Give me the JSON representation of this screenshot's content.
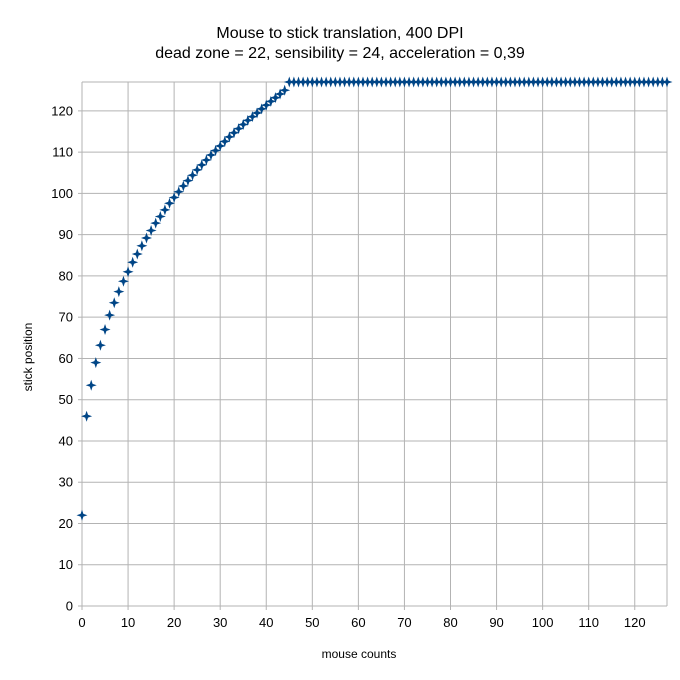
{
  "chart_data": {
    "type": "scatter",
    "title": "Mouse to stick translation, 400 DPI",
    "subtitle": "dead zone = 22, sensibility = 24, acceleration = 0,39",
    "xlabel": "mouse counts",
    "ylabel": "stick position",
    "xlim": [
      0,
      127
    ],
    "ylim": [
      0,
      127
    ],
    "x_ticks": [
      0,
      10,
      20,
      30,
      40,
      50,
      60,
      70,
      80,
      90,
      100,
      110,
      120
    ],
    "y_ticks": [
      0,
      10,
      20,
      30,
      40,
      50,
      60,
      70,
      80,
      90,
      100,
      110,
      120
    ],
    "grid": true,
    "legend": "none",
    "marker": "four-pointed-star",
    "marker_color": "#004586",
    "series": [
      {
        "x": [
          0,
          1,
          2,
          3,
          4,
          5,
          6,
          7,
          8,
          9,
          10,
          11,
          12,
          13,
          14,
          15,
          16,
          17,
          18,
          19,
          20,
          21,
          22,
          23,
          24,
          25,
          26,
          27,
          28,
          29,
          30,
          31,
          32,
          33,
          34,
          35,
          36,
          37,
          38,
          39,
          40,
          41,
          42,
          43,
          44,
          45,
          46,
          47,
          48,
          49,
          50,
          51,
          52,
          53,
          54,
          55,
          56,
          57,
          58,
          59,
          60,
          61,
          62,
          63,
          64,
          65,
          66,
          67,
          68,
          69,
          70,
          71,
          72,
          73,
          74,
          75,
          76,
          77,
          78,
          79,
          80,
          81,
          82,
          83,
          84,
          85,
          86,
          87,
          88,
          89,
          90,
          91,
          92,
          93,
          94,
          95,
          96,
          97,
          98,
          99,
          100,
          101,
          102,
          103,
          104,
          105,
          106,
          107,
          108,
          109,
          110,
          111,
          112,
          113,
          114,
          115,
          116,
          117,
          118,
          119,
          120,
          121,
          122,
          123,
          124,
          125,
          126,
          127
        ],
        "y": [
          22,
          46,
          53.5,
          59,
          63.2,
          67,
          70.5,
          73.5,
          76.2,
          78.7,
          81,
          83.3,
          85.3,
          87.3,
          89.2,
          91,
          92.8,
          94.4,
          96,
          97.6,
          99,
          100.4,
          101.8,
          103.1,
          104.4,
          105.7,
          106.9,
          108.1,
          109.3,
          110.4,
          111.5,
          112.6,
          113.7,
          114.7,
          115.7,
          116.7,
          117.7,
          118.6,
          119.5,
          120.5,
          121.4,
          122.3,
          123.2,
          124.1,
          125,
          127,
          127,
          127,
          127,
          127,
          127,
          127,
          127,
          127,
          127,
          127,
          127,
          127,
          127,
          127,
          127,
          127,
          127,
          127,
          127,
          127,
          127,
          127,
          127,
          127,
          127,
          127,
          127,
          127,
          127,
          127,
          127,
          127,
          127,
          127,
          127,
          127,
          127,
          127,
          127,
          127,
          127,
          127,
          127,
          127,
          127,
          127,
          127,
          127,
          127,
          127,
          127,
          127,
          127,
          127,
          127,
          127,
          127,
          127,
          127,
          127,
          127,
          127,
          127,
          127,
          127,
          127,
          127,
          127,
          127,
          127,
          127,
          127,
          127,
          127,
          127,
          127,
          127,
          127,
          127,
          127,
          127,
          127
        ]
      }
    ]
  }
}
